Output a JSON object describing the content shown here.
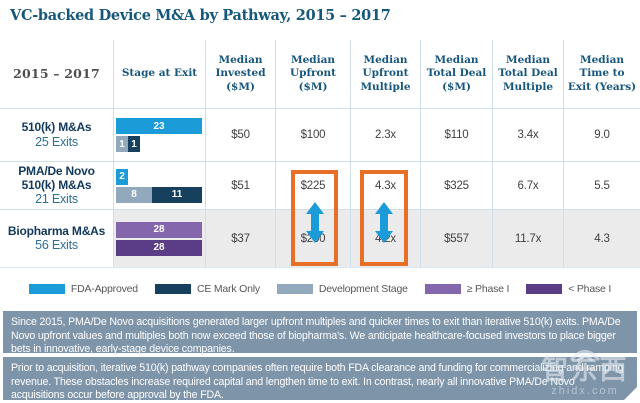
{
  "title": "VC-backed Device M&A by Pathway, 2015 – 2017",
  "chart_data": {
    "type": "table",
    "title": "VC-backed Device M&A by Pathway, 2015 – 2017",
    "columns": [
      "2015 – 2017",
      "Stage at Exit",
      "Median Invested ($M)",
      "Median Upfront ($M)",
      "Median Upfront Multiple",
      "Median Total Deal ($M)",
      "Median Total Deal Multiple",
      "Median Time to Exit (Years)"
    ],
    "colors": {
      "fda": "#1b9cd9",
      "ce": "#17405f",
      "dev": "#92a9bd",
      "phase1_plus": "#8466ad",
      "phase1_minus": "#5b3d87"
    },
    "rows": [
      {
        "pathway": "510(k) M&As",
        "exits_label": "25 Exits",
        "bars": [
          [
            {
              "series": "FDA-Approved",
              "color_key": "fda",
              "value": 23
            }
          ],
          [
            {
              "series": "Development Stage",
              "color_key": "dev",
              "value": 1
            },
            {
              "series": "CE Mark Only",
              "color_key": "ce",
              "value": 1
            }
          ]
        ],
        "values": [
          "$50",
          "$100",
          "2.3x",
          "$110",
          "3.4x",
          "9.0"
        ]
      },
      {
        "pathway": "PMA/De Novo 510(k) M&As",
        "exits_label": "21 Exits",
        "bars": [
          [
            {
              "series": "FDA-Approved",
              "color_key": "fda",
              "value": 2
            }
          ],
          [
            {
              "series": "Development Stage",
              "color_key": "dev",
              "value": 8
            },
            {
              "series": "CE Mark Only",
              "color_key": "ce",
              "value": 11
            }
          ]
        ],
        "values": [
          "$51",
          "$225",
          "4.3x",
          "$325",
          "6.7x",
          "5.5"
        ]
      },
      {
        "pathway": "Biopharma M&As",
        "exits_label": "56 Exits",
        "bars": [
          [
            {
              "series": "≥ Phase I",
              "color_key": "phase1_plus",
              "value": 28
            }
          ],
          [
            {
              "series": "< Phase I",
              "color_key": "phase1_minus",
              "value": 28
            }
          ]
        ],
        "values": [
          "$37",
          "$200",
          "4.2x",
          "$557",
          "11.7x",
          "4.3"
        ]
      }
    ],
    "legend": [
      {
        "label": "FDA-Approved",
        "color": "#1b9cd9"
      },
      {
        "label": "CE Mark Only",
        "color": "#17405f"
      },
      {
        "label": "Development Stage",
        "color": "#92a9bd"
      },
      {
        "label": "≥ Phase I",
        "color": "#8466ad"
      },
      {
        "label": "< Phase I",
        "color": "#5b3d87"
      }
    ],
    "highlights": [
      {
        "column": "Median Upfront ($M)",
        "top_value": "$225",
        "bottom_value": "$200",
        "arrow": "double-vertical"
      },
      {
        "column": "Median Upfront Multiple",
        "top_value": "4.3x",
        "bottom_value": "4.2x",
        "arrow": "double-vertical"
      }
    ],
    "highlight_box_color": "#e76f28",
    "arrow_color": "#1b9cd9"
  },
  "footnotes": [
    "Since 2015, PMA/De Novo acquisitions generated larger upfront multiples and quicker times to exit than iterative 510(k) exits. PMA/De Novo upfront values and multiples both now exceed those of biopharma's. We anticipate healthcare-focused investors to place bigger bets in innovative, early-stage device companies.",
    "Prior to acquisition, iterative 510(k) pathway companies often require both FDA clearance and funding for commercializing and ramping revenue. These obstacles increase required capital and lengthen time to exit. In contrast, nearly all innovative PMA/De Novo acquisitions occur before approval by the FDA."
  ],
  "watermark": {
    "name": "智东西",
    "url": "zhidx.com"
  }
}
